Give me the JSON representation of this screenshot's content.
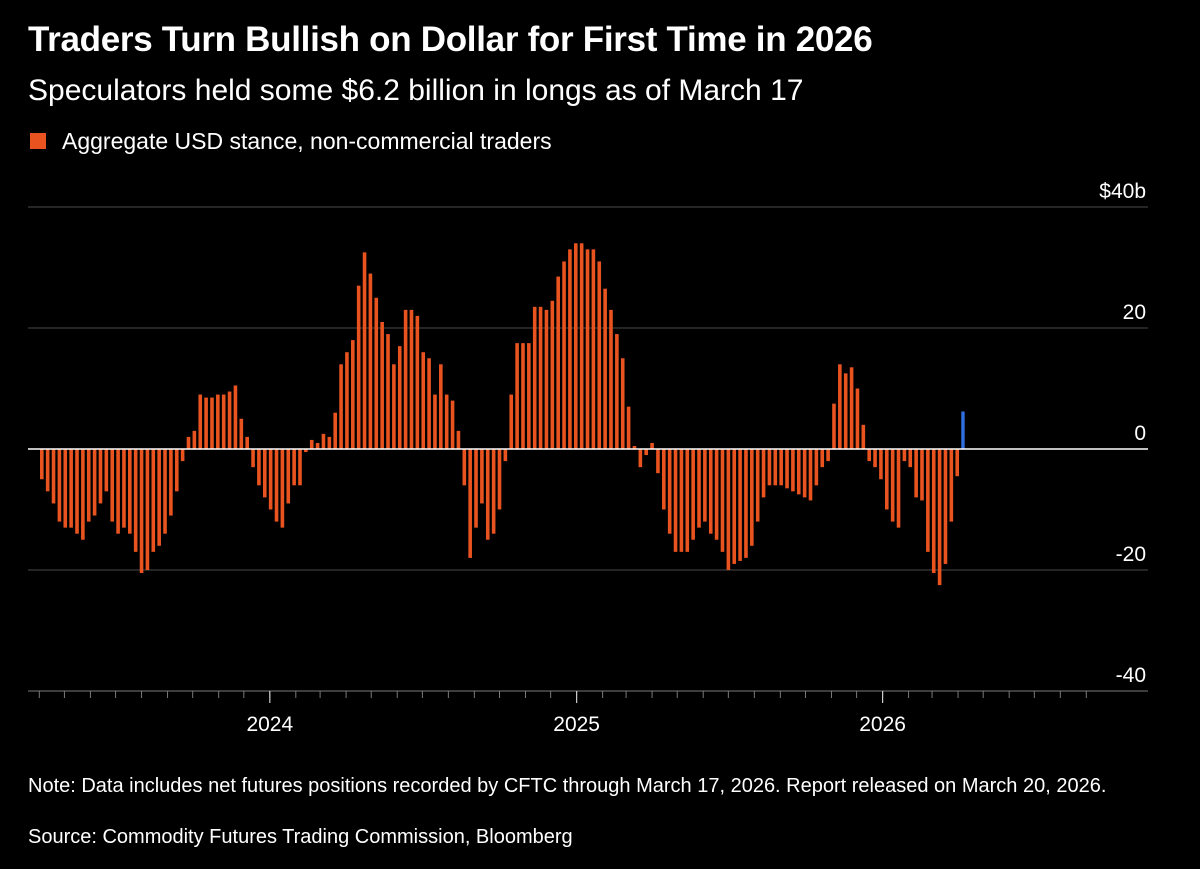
{
  "title": "Traders Turn Bullish on Dollar for First Time in 2026",
  "subtitle": "Speculators held some $6.2 billion in longs as of March 17",
  "note": "Note: Data includes net futures positions recorded by CFTC through March 17, 2026. Report released on March 20, 2026.",
  "source": "Source: Commodity Futures Trading Commission, Bloomberg",
  "colors": {
    "negative_long": "#e8531f",
    "latest": "#2f6fe0",
    "background": "#000000",
    "grid": "#4a4a4a"
  },
  "chart_data": {
    "type": "bar",
    "legend": [
      "Aggregate USD stance, non-commercial traders"
    ],
    "legend_position": "top-left",
    "ylim": [
      -40,
      40
    ],
    "y_ticks": [
      {
        "value": 40,
        "label": "$40b"
      },
      {
        "value": 20,
        "label": "20"
      },
      {
        "value": 0,
        "label": "0"
      },
      {
        "value": -20,
        "label": "-20"
      },
      {
        "value": -40,
        "label": "-40"
      }
    ],
    "x_start": "2023-04-04",
    "x_end": "2026-03-17",
    "x_interval": "weekly",
    "x_ticks": [
      {
        "date": "2024-01-01",
        "label": "2024"
      },
      {
        "date": "2025-01-01",
        "label": "2025"
      },
      {
        "date": "2026-01-01",
        "label": "2026"
      }
    ],
    "grid": true,
    "y_axis_position": "right",
    "highlight_last": true,
    "series": [
      {
        "name": "Aggregate USD stance, non-commercial traders",
        "values": [
          -5,
          -7,
          -9,
          -12,
          -13,
          -13,
          -14,
          -15,
          -12,
          -11,
          -9,
          -7,
          -12,
          -14,
          -13,
          -14,
          -17,
          -20.5,
          -20,
          -17,
          -16,
          -14,
          -11,
          -7,
          -2,
          2,
          3,
          9,
          8.5,
          8.5,
          9,
          9,
          9.5,
          10.5,
          5,
          2,
          -3,
          -6,
          -8,
          -10,
          -12,
          -13,
          -9,
          -6,
          -6,
          -0.5,
          1.5,
          1,
          2.5,
          2,
          6,
          14,
          16,
          18,
          27,
          32.5,
          29,
          25,
          21,
          19,
          14,
          17,
          23,
          23,
          22,
          16,
          15,
          9,
          14,
          9,
          8,
          3,
          -6,
          -18,
          -13,
          -9,
          -15,
          -14,
          -10,
          -2,
          9,
          17.5,
          17.5,
          17.5,
          23.5,
          23.5,
          23,
          24.5,
          28.5,
          31,
          33,
          34,
          34,
          33,
          33,
          31,
          26.5,
          23,
          19,
          15,
          7,
          0.5,
          -3,
          -1,
          1,
          -4,
          -10,
          -14,
          -17,
          -17,
          -17,
          -15,
          -13,
          -12,
          -14,
          -15,
          -17,
          -20,
          -19,
          -18.5,
          -18,
          -16,
          -12,
          -8,
          -6,
          -6,
          -6,
          -6.5,
          -7,
          -7.5,
          -8,
          -8.5,
          -6,
          -3,
          -2,
          7.5,
          14,
          12.5,
          13.5,
          10,
          4,
          -2,
          -3,
          -5,
          -10,
          -12,
          -13,
          -2,
          -3,
          -8,
          -8.5,
          -17,
          -20.5,
          -22.5,
          -19,
          -12,
          -4.5,
          6.2
        ]
      }
    ]
  }
}
